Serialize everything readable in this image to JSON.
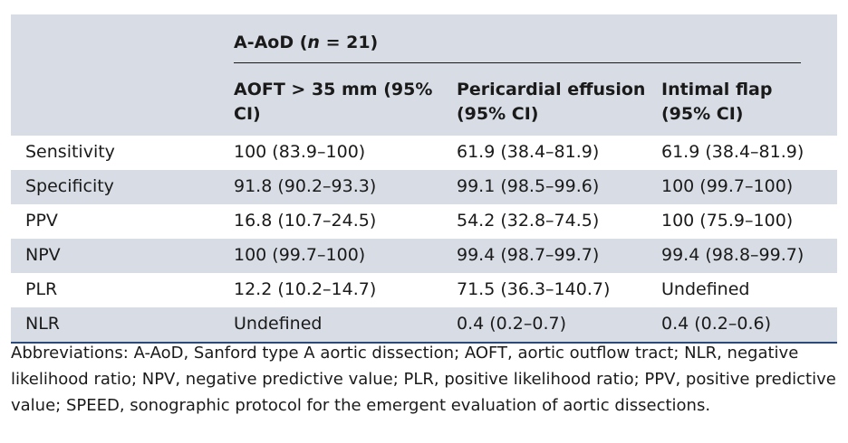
{
  "table": {
    "group_title_prefix": "A-AoD (",
    "group_title_n": "n",
    "group_title_suffix": " = 21)",
    "columns": [
      "AOFT > 35 mm (95% CI)",
      "Pericardial effusion (95% CI)",
      "Intimal flap (95% CI)"
    ],
    "rows": [
      {
        "label": "Sensitivity",
        "values": [
          "100 (83.9–100)",
          "61.9 (38.4–81.9)",
          "61.9 (38.4–81.9)"
        ]
      },
      {
        "label": "Specificity",
        "values": [
          "91.8 (90.2–93.3)",
          "99.1 (98.5–99.6)",
          "100 (99.7–100)"
        ]
      },
      {
        "label": "PPV",
        "values": [
          "16.8 (10.7–24.5)",
          "54.2 (32.8–74.5)",
          "100 (75.9–100)"
        ]
      },
      {
        "label": "NPV",
        "values": [
          "100 (99.7–100)",
          "99.4 (98.7–99.7)",
          "99.4 (98.8–99.7)"
        ]
      },
      {
        "label": "PLR",
        "values": [
          "12.2 (10.2–14.7)",
          "71.5 (36.3–140.7)",
          "Undefined"
        ]
      },
      {
        "label": "NLR",
        "values": [
          "Undefined",
          "0.4 (0.2–0.7)",
          "0.4 (0.2–0.6)"
        ]
      }
    ]
  },
  "footnote": "Abbreviations: A-AoD, Sanford type A aortic dissection; AOFT, aortic outflow tract; NLR, negative likelihood ratio; NPV, negative predictive value; PLR, positive likelihood ratio; PPV, positive predictive value; SPEED, sonographic protocol for the emergent evaluation of aortic dissections.",
  "colors": {
    "header_shade": "#d8dde5",
    "bottom_rule": "#2b4a7a"
  }
}
